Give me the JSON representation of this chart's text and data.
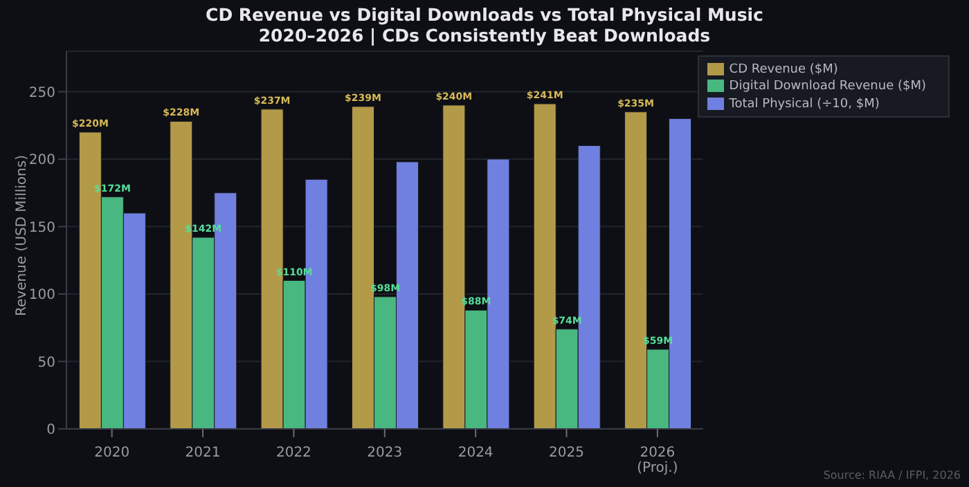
{
  "chart_data": {
    "type": "bar",
    "title": "CD Revenue vs Digital Downloads vs Total Physical Music\n2020–2026 | CDs Consistently Beat Downloads",
    "ylabel": "Revenue (USD Millions)",
    "categories": [
      "2020",
      "2021",
      "2022",
      "2023",
      "2024",
      "2025",
      "2026\n(Proj.)"
    ],
    "series": [
      {
        "name": "CD Revenue ($M)",
        "color": "#b39a48",
        "values": [
          220,
          228,
          237,
          239,
          240,
          241,
          235
        ],
        "value_labels": [
          "$220M",
          "$228M",
          "$237M",
          "$239M",
          "$240M",
          "$241M",
          "$235M"
        ]
      },
      {
        "name": "Digital Download Revenue ($M)",
        "color": "#48b880",
        "values": [
          172,
          142,
          110,
          98,
          88,
          74,
          59
        ],
        "value_labels": [
          "$172M",
          "$142M",
          "$110M",
          "$98M",
          "$88M",
          "$74M",
          "$59M"
        ]
      },
      {
        "name": "Total Physical (÷10, $M)",
        "color": "#7080e0",
        "values": [
          160,
          175,
          185,
          198,
          200,
          210,
          230
        ]
      }
    ],
    "ylim": [
      0,
      280
    ],
    "yticks": [
      0,
      50,
      100,
      150,
      200,
      250
    ],
    "grid": "y",
    "legend": "top right",
    "annotations": [
      "Source: RIAA / IFPI, 2026"
    ]
  }
}
